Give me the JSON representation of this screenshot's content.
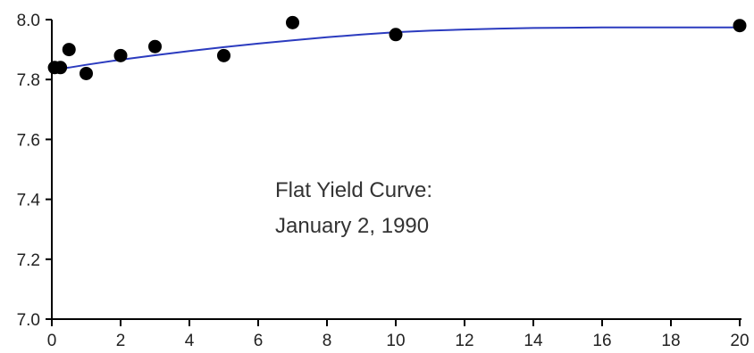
{
  "chart_data": {
    "type": "scatter",
    "xlim": [
      0,
      20
    ],
    "ylim": [
      7.0,
      8.0
    ],
    "x_ticks": [
      0,
      2,
      4,
      6,
      8,
      10,
      12,
      14,
      16,
      18,
      20
    ],
    "y_ticks": [
      7.0,
      7.2,
      7.4,
      7.6,
      7.8,
      8.0
    ],
    "x_tick_labels": [
      "0",
      "2",
      "4",
      "6",
      "8",
      "10",
      "12",
      "14",
      "16",
      "18",
      "20"
    ],
    "y_tick_labels": [
      "7.0",
      "7.2",
      "7.4",
      "7.6",
      "7.8",
      "8.0"
    ],
    "grid": false,
    "annotation": [
      "Flat Yield Curve:",
      "January 2, 1990"
    ],
    "points": [
      {
        "x": 0.08,
        "y": 7.84
      },
      {
        "x": 0.25,
        "y": 7.84
      },
      {
        "x": 0.5,
        "y": 7.9
      },
      {
        "x": 1.0,
        "y": 7.82
      },
      {
        "x": 2.0,
        "y": 7.88
      },
      {
        "x": 3.0,
        "y": 7.91
      },
      {
        "x": 5.0,
        "y": 7.88
      },
      {
        "x": 7.0,
        "y": 7.99
      },
      {
        "x": 10.0,
        "y": 7.95
      },
      {
        "x": 20.0,
        "y": 7.98
      }
    ],
    "fitted_curve": {
      "x": [
        0,
        0.5,
        1,
        2,
        3,
        4,
        5,
        6,
        7,
        8,
        9,
        10,
        11,
        12,
        13,
        14,
        15,
        16,
        17,
        18,
        19,
        20
      ],
      "y": [
        7.832,
        7.84,
        7.849,
        7.866,
        7.881,
        7.895,
        7.908,
        7.92,
        7.931,
        7.941,
        7.95,
        7.958,
        7.963,
        7.967,
        7.97,
        7.972,
        7.973,
        7.974,
        7.974,
        7.974,
        7.974,
        7.974
      ]
    },
    "colors": {
      "curve": "#2b3bbf",
      "points": "#000000",
      "axes": "#000000"
    }
  }
}
